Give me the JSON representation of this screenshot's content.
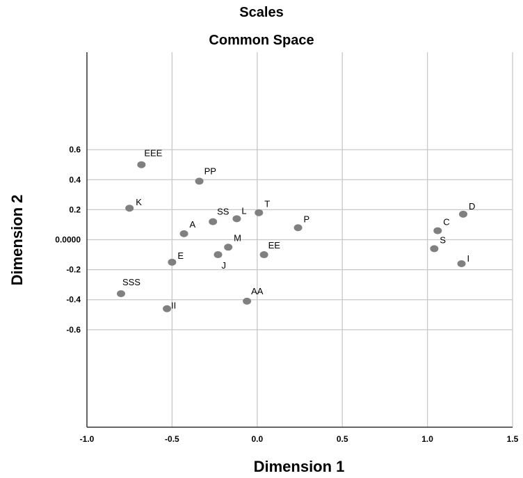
{
  "chart_data": {
    "type": "scatter",
    "title": "Scales",
    "subtitle": "Common Space",
    "xlabel": "Dimension 1",
    "ylabel": "Dimension 2",
    "xlim": [
      -1.0,
      1.5
    ],
    "ylim": [
      -1.25,
      1.25
    ],
    "x_ticks": [
      -1.0,
      -0.5,
      0.0,
      0.5,
      1.0,
      1.5
    ],
    "x_tick_labels": [
      "-1.0",
      "-0.5",
      "0.0",
      "0.5",
      "1.0",
      "1.5"
    ],
    "y_ticks": [
      0.6,
      0.4,
      0.2,
      0.0,
      -0.2,
      -0.4,
      -0.6
    ],
    "y_tick_labels": [
      "0.6",
      "0.4",
      "0.2",
      "0.0000",
      "-0.2",
      "-0.4",
      "-0.6"
    ],
    "grid": true,
    "marker_color": "#808080",
    "points": [
      {
        "label": "EEE",
        "x": -0.68,
        "y": 0.5
      },
      {
        "label": "PP",
        "x": -0.34,
        "y": 0.39
      },
      {
        "label": "K",
        "x": -0.75,
        "y": 0.21
      },
      {
        "label": "SS",
        "x": -0.26,
        "y": 0.12
      },
      {
        "label": "L",
        "x": -0.12,
        "y": 0.14
      },
      {
        "label": "T",
        "x": 0.01,
        "y": 0.18
      },
      {
        "label": "P",
        "x": 0.24,
        "y": 0.08
      },
      {
        "label": "A",
        "x": -0.43,
        "y": 0.04
      },
      {
        "label": "M",
        "x": -0.17,
        "y": -0.05
      },
      {
        "label": "J",
        "x": -0.23,
        "y": -0.1
      },
      {
        "label": "EE",
        "x": 0.04,
        "y": -0.1
      },
      {
        "label": "E",
        "x": -0.5,
        "y": -0.15
      },
      {
        "label": "SSS",
        "x": -0.8,
        "y": -0.36
      },
      {
        "label": "II",
        "x": -0.53,
        "y": -0.46
      },
      {
        "label": "AA",
        "x": -0.06,
        "y": -0.41
      },
      {
        "label": "D",
        "x": 1.21,
        "y": 0.17
      },
      {
        "label": "C",
        "x": 1.06,
        "y": 0.06
      },
      {
        "label": "S",
        "x": 1.04,
        "y": -0.06
      },
      {
        "label": "I",
        "x": 1.2,
        "y": -0.16
      }
    ]
  }
}
